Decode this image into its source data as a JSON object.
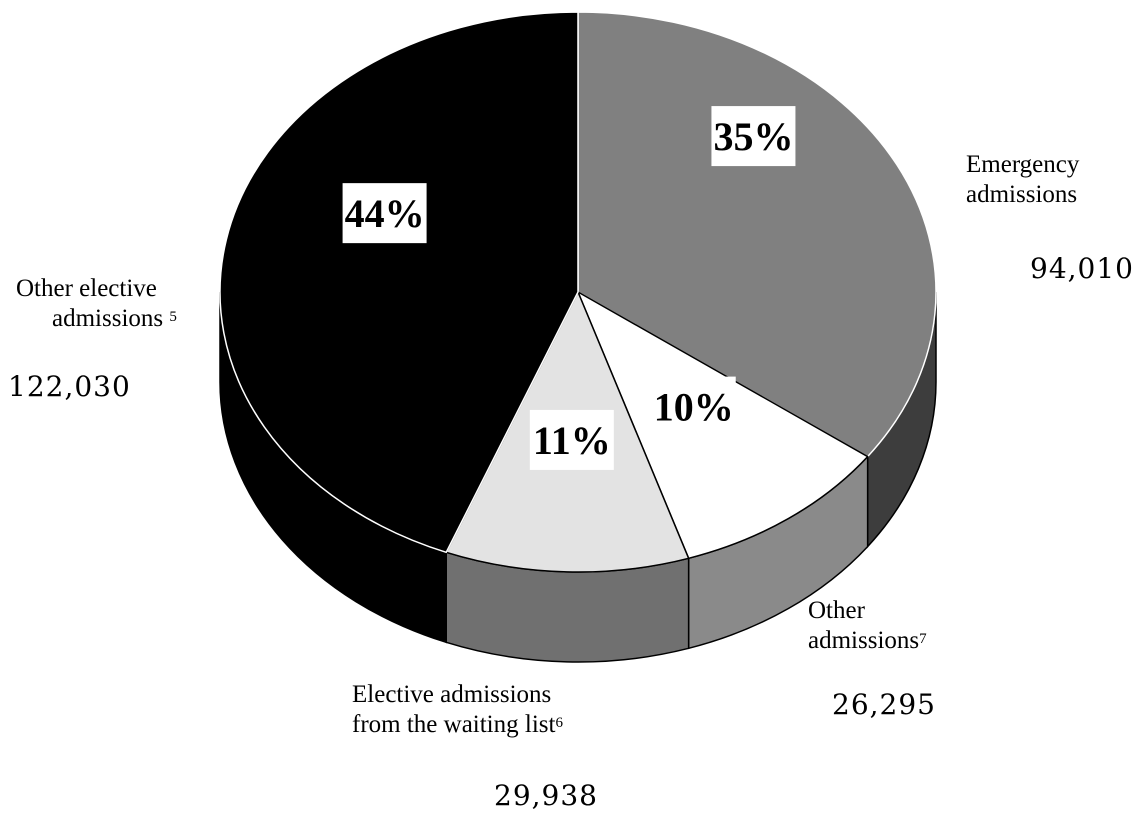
{
  "chart_data": {
    "type": "pie",
    "style": "3d",
    "slices": [
      {
        "line1": "Emergency",
        "line2": "admissions",
        "note": "",
        "value": "94,010",
        "percent": 35,
        "percent_label": "35%",
        "color": "#808080"
      },
      {
        "line1": "Other",
        "line2": "admissions",
        "note": "7",
        "value": "26,295",
        "percent": 10,
        "percent_label": "10%",
        "color": "#ffffff"
      },
      {
        "line1": "Elective admissions",
        "line2": "from the waiting list",
        "note": "6",
        "value": "29,938",
        "percent": 11,
        "percent_label": "11%",
        "color": "#e3e3e3"
      },
      {
        "line1": "Other elective",
        "line2": "admissions ",
        "note": "5",
        "value": "122,030",
        "percent": 44,
        "percent_label": "44%",
        "color": "#000000"
      }
    ]
  }
}
